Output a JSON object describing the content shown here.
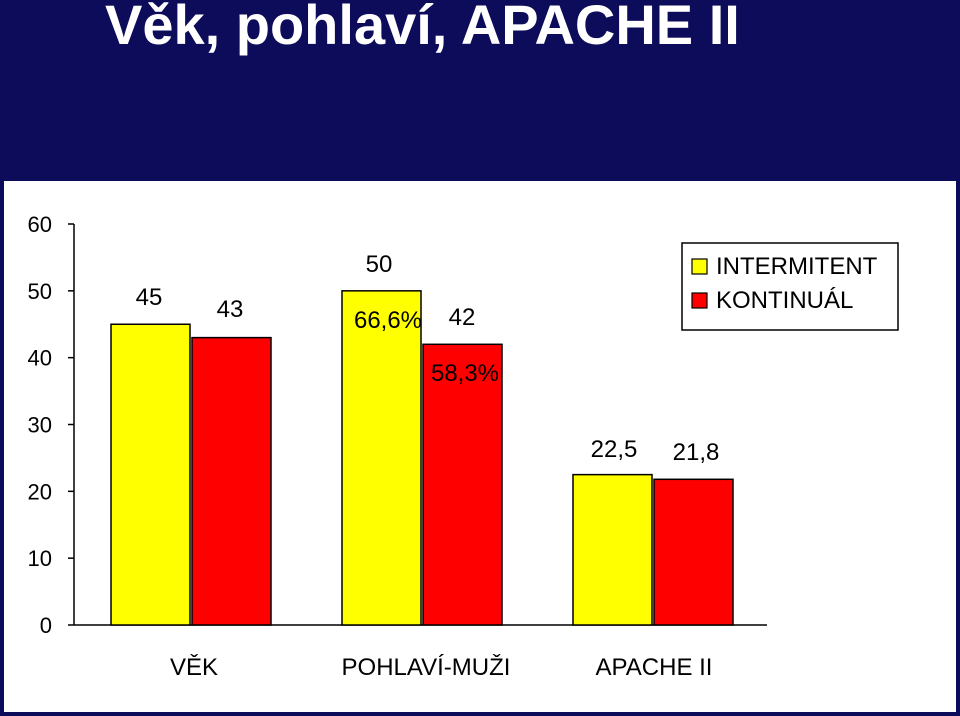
{
  "slide": {
    "title": "Věk, pohlaví, APACHE II"
  },
  "chart_data": {
    "type": "bar",
    "categories": [
      "VĚK",
      "POHLAVÍ-MUŽI",
      "APACHE II"
    ],
    "series": [
      {
        "name": "INTERMITENT",
        "values": [
          45,
          50,
          22.5
        ],
        "value_labels": [
          "45",
          "50",
          "22,5"
        ],
        "color": "#ffff00"
      },
      {
        "name": "KONTINUÁL",
        "values": [
          43,
          42,
          21.8
        ],
        "value_labels": [
          "43",
          "42",
          "21,8"
        ],
        "color": "#ff0000"
      }
    ],
    "annotations": [
      {
        "text": "66,6%",
        "category": "POHLAVÍ-MUŽI",
        "series": "INTERMITENT"
      },
      {
        "text": "58,3%",
        "category": "POHLAVÍ-MUŽI",
        "series": "KONTINUÁL"
      }
    ],
    "y_ticks": [
      0,
      10,
      20,
      30,
      40,
      50,
      60
    ],
    "ylim": [
      0,
      60
    ],
    "grid": false,
    "legend_position": "top-right"
  }
}
